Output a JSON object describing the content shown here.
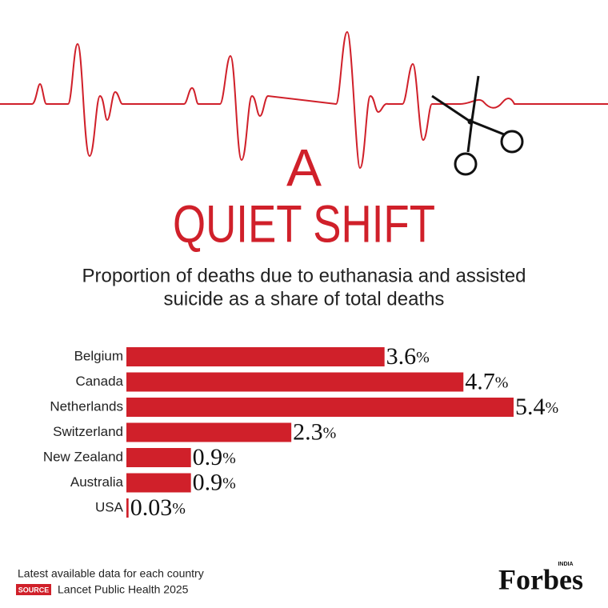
{
  "chart_data": {
    "type": "bar",
    "orientation": "horizontal",
    "title": [
      "A",
      "QUIET SHIFT"
    ],
    "subtitle": [
      "Proportion of deaths due to euthanasia and assisted",
      "suicide as a share of total deaths"
    ],
    "categories": [
      "Belgium",
      "Canada",
      "Netherlands",
      "Switzerland",
      "New Zealand",
      "Australia",
      "USA"
    ],
    "values": [
      3.6,
      4.7,
      5.4,
      2.3,
      0.9,
      0.9,
      0.03
    ],
    "value_labels": [
      "3.6%",
      "4.7%",
      "5.4%",
      "2.3%",
      "0.9%",
      "0.9%",
      "0.03%"
    ],
    "color": "#d0202a",
    "note": "Latest available data for each country",
    "source_tag": "SOURCE",
    "source": "Lancet Public Health 2025",
    "logo": "Forbes",
    "logo_edition": "INDIA"
  }
}
